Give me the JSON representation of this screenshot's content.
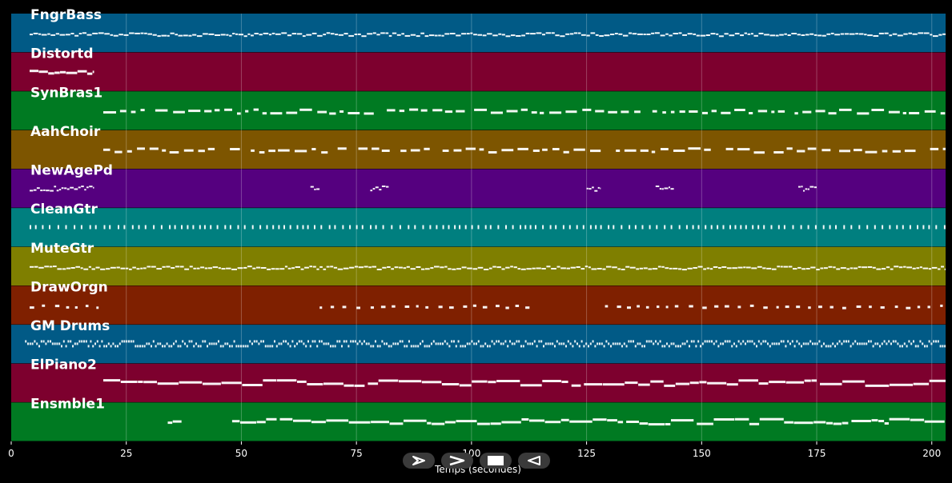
{
  "title": "",
  "x_axis": {
    "label": "Temps (secondes)",
    "range": [
      0,
      203
    ],
    "ticks": [
      0,
      25,
      50,
      75,
      100,
      125,
      150,
      175,
      200
    ]
  },
  "tracks": [
    {
      "name": "FngrBass",
      "color": "#015a86",
      "pattern": "dense",
      "segments": [
        [
          4,
          203
        ]
      ]
    },
    {
      "name": "Distortd",
      "color": "#7d002e",
      "pattern": "block",
      "segments": [
        [
          4,
          18
        ]
      ]
    },
    {
      "name": "SynBras1",
      "color": "#007a22",
      "pattern": "dashes",
      "segments": [
        [
          20,
          203
        ]
      ]
    },
    {
      "name": "AahChoir",
      "color": "#7d5500",
      "pattern": "dashes",
      "segments": [
        [
          20,
          203
        ]
      ]
    },
    {
      "name": "NewAgePd",
      "color": "#55007f",
      "pattern": "sparse",
      "segments": [
        [
          4,
          18
        ],
        [
          65,
          67
        ],
        [
          78,
          82
        ],
        [
          125,
          128
        ],
        [
          140,
          144
        ],
        [
          171,
          175
        ]
      ]
    },
    {
      "name": "CleanGtr",
      "color": "#007f7f",
      "pattern": "ticks",
      "segments": [
        [
          4,
          203
        ]
      ]
    },
    {
      "name": "MuteGtr",
      "color": "#7f7f00",
      "pattern": "dense",
      "segments": [
        [
          4,
          203
        ]
      ]
    },
    {
      "name": "DrawOrgn",
      "color": "#7f2000",
      "pattern": "dots",
      "segments": [
        [
          4,
          19
        ],
        [
          67,
          113
        ],
        [
          129,
          203
        ]
      ]
    },
    {
      "name": "GM Drums",
      "color": "#015a86",
      "pattern": "drums",
      "segments": [
        [
          3,
          203
        ]
      ]
    },
    {
      "name": "ElPiano2",
      "color": "#7d002e",
      "pattern": "line",
      "segments": [
        [
          20,
          203
        ]
      ]
    },
    {
      "name": "Ensmble1",
      "color": "#007a22",
      "pattern": "line",
      "segments": [
        [
          34,
          37
        ],
        [
          48,
          203
        ]
      ]
    }
  ],
  "controls": [
    {
      "name": "play-forward-button",
      "icon": "play-outline-icon"
    },
    {
      "name": "fast-forward-button",
      "icon": "chevron-right-icon"
    },
    {
      "name": "stop-button",
      "icon": "stop-icon"
    },
    {
      "name": "rewind-button",
      "icon": "play-back-icon"
    }
  ]
}
